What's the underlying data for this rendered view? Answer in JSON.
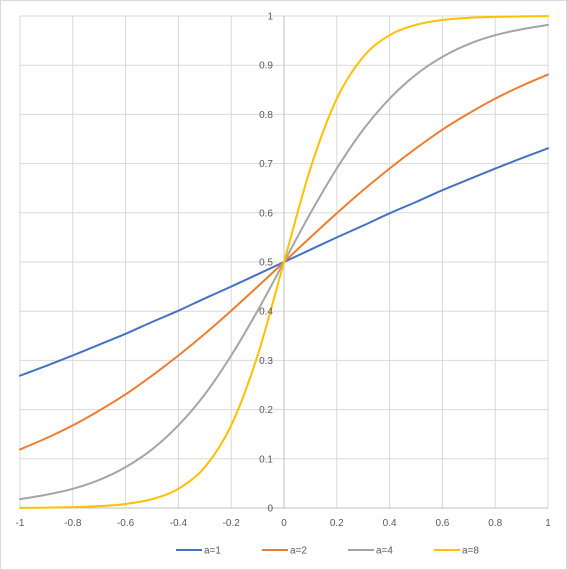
{
  "chart_data": {
    "type": "line",
    "title": "",
    "xlabel": "",
    "ylabel": "",
    "xlim": [
      -1,
      1
    ],
    "ylim": [
      0,
      1
    ],
    "x_ticks": [
      "-1",
      "-0.8",
      "-0.6",
      "-0.4",
      "-0.2",
      "0",
      "0.2",
      "0.4",
      "0.6",
      "0.8",
      "1"
    ],
    "y_ticks": [
      "0",
      "0.1",
      "0.2",
      "0.3",
      "0.4",
      "0.5",
      "0.6",
      "0.7",
      "0.8",
      "0.9",
      "1"
    ],
    "grid": true,
    "legend_position": "bottom",
    "x": [
      -1,
      -0.9,
      -0.8,
      -0.7,
      -0.6,
      -0.5,
      -0.4,
      -0.3,
      -0.2,
      -0.1,
      0,
      0.1,
      0.2,
      0.3,
      0.4,
      0.5,
      0.6,
      0.7,
      0.8,
      0.9,
      1
    ],
    "series": [
      {
        "name": "a=1",
        "color": "#4472c4",
        "values": [
          0.269,
          0.289,
          0.31,
          0.332,
          0.354,
          0.378,
          0.401,
          0.426,
          0.45,
          0.475,
          0.5,
          0.525,
          0.55,
          0.574,
          0.599,
          0.622,
          0.646,
          0.668,
          0.69,
          0.711,
          0.731
        ]
      },
      {
        "name": "a=2",
        "color": "#ed7d31",
        "values": [
          0.119,
          0.142,
          0.168,
          0.198,
          0.231,
          0.269,
          0.31,
          0.354,
          0.401,
          0.45,
          0.5,
          0.55,
          0.599,
          0.646,
          0.69,
          0.731,
          0.769,
          0.802,
          0.832,
          0.858,
          0.881
        ]
      },
      {
        "name": "a=4",
        "color": "#a5a5a5",
        "values": [
          0.018,
          0.027,
          0.039,
          0.057,
          0.083,
          0.119,
          0.168,
          0.231,
          0.31,
          0.401,
          0.5,
          0.599,
          0.69,
          0.769,
          0.832,
          0.881,
          0.917,
          0.943,
          0.961,
          0.973,
          0.982
        ]
      },
      {
        "name": "a=8",
        "color": "#ffc000",
        "values": [
          0.0003,
          0.0007,
          0.0017,
          0.0037,
          0.0082,
          0.018,
          0.039,
          0.083,
          0.168,
          0.31,
          0.5,
          0.69,
          0.832,
          0.917,
          0.961,
          0.982,
          0.9918,
          0.9963,
          0.9983,
          0.9993,
          0.9997
        ]
      }
    ]
  }
}
